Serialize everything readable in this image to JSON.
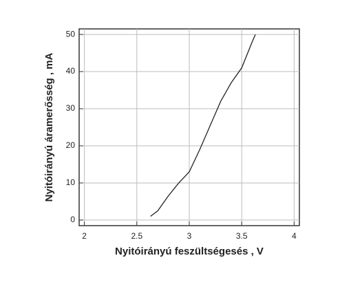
{
  "chart_data": {
    "type": "line",
    "x_label": "Nyitóirányú feszültségesés , V",
    "y_label": "Nyitóirányú áramerősség , mA",
    "series": [
      {
        "color": "#222222",
        "x": [
          2.63,
          2.7,
          2.8,
          2.9,
          3.0,
          3.1,
          3.2,
          3.3,
          3.4,
          3.5,
          3.6,
          3.63
        ],
        "values": [
          1,
          2.5,
          6.5,
          10,
          13,
          19,
          25.5,
          32,
          37,
          41,
          48,
          50
        ]
      }
    ],
    "xlim": [
      1.95,
      4.05
    ],
    "xticks": [
      2,
      2.5,
      3,
      3.5,
      4
    ],
    "ylim": [
      -1.5,
      51.5
    ],
    "yticks": [
      0,
      10,
      20,
      30,
      40,
      50
    ],
    "grid": true
  }
}
